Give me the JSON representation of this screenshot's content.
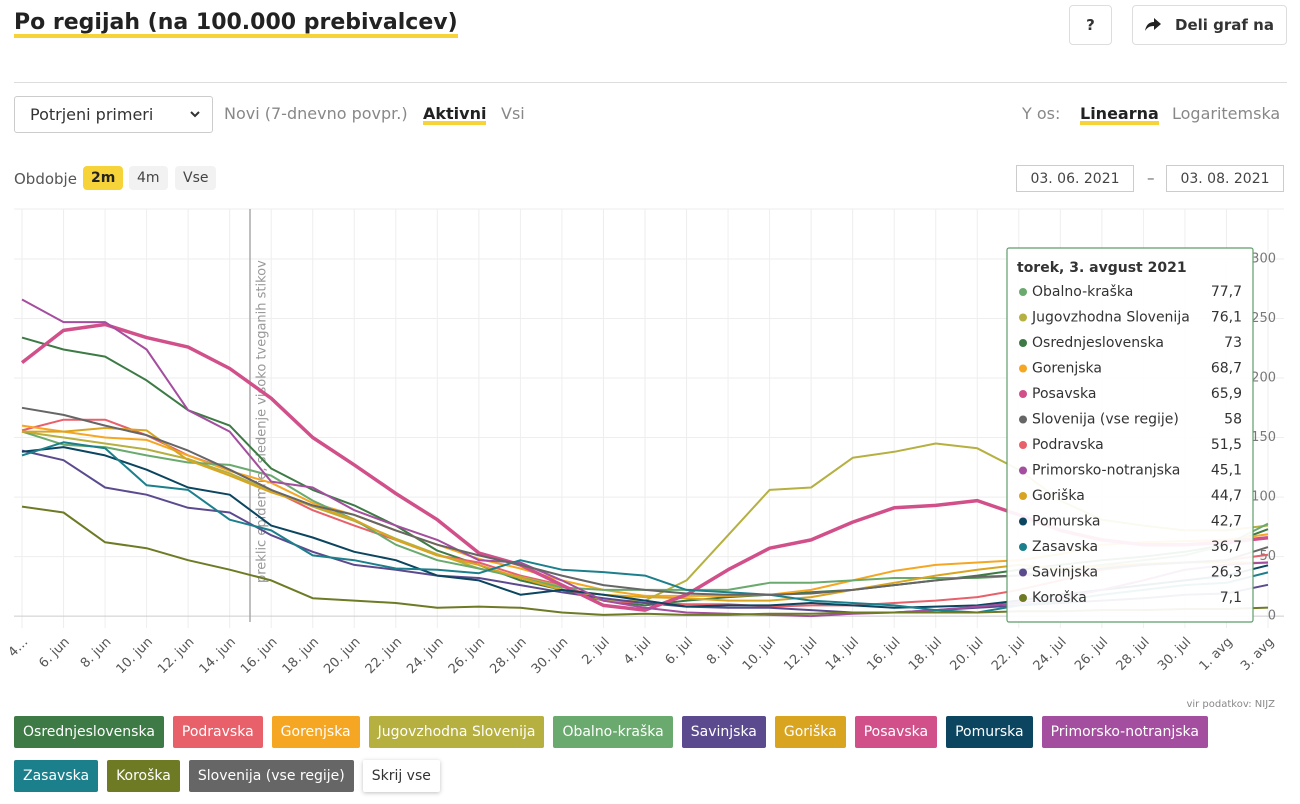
{
  "header": {
    "title": "Po regijah (na 100.000 prebivalcev)",
    "help_button": "?",
    "share_button": "Deli graf na"
  },
  "controls": {
    "measure_select": "Potrjeni primeri",
    "tabs": [
      "Novi (7-dnevno povpr.)",
      "Aktivni",
      "Vsi"
    ],
    "y_axis_label": "Y os:",
    "y_scale_options": [
      "Linearna",
      "Logaritemska"
    ],
    "period_label": "Obdobje",
    "period_options": [
      "2m",
      "4m",
      "Vse"
    ],
    "date_from": "03. 06. 2021",
    "date_separator": "–",
    "date_to": "03. 08. 2021"
  },
  "chart_data": {
    "type": "line",
    "categories": [
      "4…",
      "6. jun",
      "8. jun",
      "10. jun",
      "12. jun",
      "14. jun",
      "16. jun",
      "18. jun",
      "20. jun",
      "22. jun",
      "24. jun",
      "26. jun",
      "28. jun",
      "30. jun",
      "2. jul",
      "4. jul",
      "6. jul",
      "8. jul",
      "10. jul",
      "12. jul",
      "14. jul",
      "16. jul",
      "18. jul",
      "20. jul",
      "22. jul",
      "24. jul",
      "26. jul",
      "28. jul",
      "30. jul",
      "1. avg",
      "3. avg"
    ],
    "series": [
      {
        "name": "Osrednjeslovenska",
        "color": "#3d7a45",
        "values": [
          234,
          224,
          218,
          198,
          173,
          160,
          124,
          106,
          93,
          76,
          55,
          43,
          30,
          22,
          13,
          9,
          13,
          16,
          18,
          20,
          22,
          26,
          30,
          34,
          39,
          43,
          47,
          50,
          54,
          60,
          73
        ]
      },
      {
        "name": "Podravska",
        "color": "#e8606a",
        "values": [
          156,
          165,
          165,
          152,
          135,
          123,
          106,
          89,
          76,
          64,
          51,
          45,
          34,
          26,
          13,
          11,
          10,
          10,
          8,
          9,
          9,
          11,
          13,
          16,
          22,
          30,
          39,
          43,
          45,
          47,
          51.5
        ]
      },
      {
        "name": "Gorenjska",
        "color": "#f5a623",
        "values": [
          160,
          155,
          150,
          148,
          135,
          122,
          112,
          95,
          85,
          72,
          60,
          48,
          40,
          30,
          22,
          17,
          17,
          17,
          18,
          22,
          30,
          38,
          43,
          45,
          47,
          52,
          60,
          62,
          63,
          64,
          68.7
        ]
      },
      {
        "name": "Jugovzhodna Slovenija",
        "color": "#b5b040",
        "values": [
          155,
          150,
          145,
          140,
          132,
          120,
          105,
          92,
          80,
          65,
          52,
          40,
          33,
          25,
          13,
          13,
          30,
          68,
          106,
          108,
          133,
          138,
          145,
          141,
          123,
          97,
          81,
          76,
          72,
          72,
          76.1
        ]
      },
      {
        "name": "Obalno-kraška",
        "color": "#6aaa6e",
        "values": [
          155,
          144,
          142,
          135,
          129,
          127,
          118,
          97,
          81,
          60,
          47,
          40,
          32,
          24,
          22,
          22,
          22,
          22,
          28,
          28,
          30,
          32,
          32,
          32,
          34,
          39,
          43,
          47,
          51,
          60,
          77.7
        ]
      },
      {
        "name": "Savinjska",
        "color": "#5c4a8f",
        "values": [
          139,
          131,
          108,
          102,
          91,
          87,
          68,
          54,
          43,
          39,
          34,
          32,
          26,
          20,
          15,
          11,
          8,
          7,
          7,
          5,
          3,
          3,
          5,
          7,
          9,
          11,
          13,
          15,
          18,
          19,
          26.3
        ]
      },
      {
        "name": "Goriška",
        "color": "#d9a520",
        "values": [
          155,
          155,
          158,
          156,
          131,
          118,
          104,
          93,
          81,
          64,
          51,
          43,
          32,
          22,
          18,
          16,
          15,
          13,
          13,
          16,
          22,
          28,
          34,
          39,
          43,
          40,
          42,
          44,
          45,
          45,
          44.7
        ]
      },
      {
        "name": "Posavska",
        "color": "#d1508a",
        "values": [
          213,
          240,
          245,
          234,
          226,
          208,
          183,
          150,
          127,
          103,
          81,
          53,
          43,
          26,
          9,
          5,
          18,
          39,
          57,
          64,
          79,
          91,
          93,
          97,
          85,
          72,
          64,
          60,
          60,
          62,
          65.9
        ]
      },
      {
        "name": "Pomurska",
        "color": "#0b4560",
        "values": [
          138,
          142,
          135,
          123,
          108,
          102,
          76,
          66,
          54,
          47,
          34,
          30,
          18,
          22,
          18,
          13,
          8,
          9,
          9,
          11,
          9,
          7,
          8,
          9,
          13,
          18,
          22,
          26,
          30,
          34,
          42.7
        ]
      },
      {
        "name": "Primorsko-notranjska",
        "color": "#a34e9e",
        "values": [
          266,
          247,
          247,
          224,
          173,
          155,
          113,
          108,
          89,
          76,
          64,
          47,
          45,
          30,
          13,
          7,
          3,
          2,
          1,
          0,
          2,
          3,
          5,
          8,
          11,
          15,
          22,
          30,
          39,
          43,
          45.1
        ]
      },
      {
        "name": "Zasavska",
        "color": "#1b7f8c",
        "values": [
          135,
          146,
          141,
          110,
          106,
          81,
          72,
          51,
          47,
          40,
          39,
          36,
          47,
          39,
          37,
          34,
          22,
          20,
          18,
          13,
          11,
          9,
          5,
          3,
          9,
          13,
          18,
          22,
          26,
          28,
          36.7
        ]
      },
      {
        "name": "Koroška",
        "color": "#6f7a25",
        "values": [
          92,
          87,
          62,
          57,
          47,
          39,
          30,
          15,
          13,
          11,
          7,
          8,
          7,
          3,
          1,
          2,
          1,
          1,
          2,
          2,
          3,
          3,
          3,
          3,
          4,
          4,
          5,
          5,
          6,
          6,
          7.1
        ]
      },
      {
        "name": "Slovenija (vse regije)",
        "color": "#666666",
        "values": [
          175,
          169,
          160,
          152,
          139,
          123,
          106,
          93,
          85,
          72,
          60,
          51,
          43,
          34,
          26,
          22,
          19,
          18,
          18,
          19,
          22,
          26,
          30,
          33,
          34,
          37,
          40,
          43,
          45,
          47,
          58
        ]
      }
    ],
    "ylim": [
      -10,
      342
    ],
    "yticks": [
      0,
      50,
      100,
      150,
      200,
      250,
      300
    ],
    "grid": true,
    "annotation": "preklic epidemije, sledenje visoko tveganih stikov",
    "source": "vir podatkov: NIJZ"
  },
  "tooltip": {
    "title": "torek, 3. avgust 2021",
    "items": [
      {
        "name": "Obalno-kraška",
        "color": "#6aaa6e",
        "label": "77,7"
      },
      {
        "name": "Jugovzhodna Slovenija",
        "color": "#b5b040",
        "label": "76,1"
      },
      {
        "name": "Osrednjeslovenska",
        "color": "#3d7a45",
        "label": "73"
      },
      {
        "name": "Gorenjska",
        "color": "#f5a623",
        "label": "68,7"
      },
      {
        "name": "Posavska",
        "color": "#d1508a",
        "label": "65,9"
      },
      {
        "name": "Slovenija (vse regije)",
        "color": "#666666",
        "label": "58"
      },
      {
        "name": "Podravska",
        "color": "#e8606a",
        "label": "51,5"
      },
      {
        "name": "Primorsko-notranjska",
        "color": "#a34e9e",
        "label": "45,1"
      },
      {
        "name": "Goriška",
        "color": "#d9a520",
        "label": "44,7"
      },
      {
        "name": "Pomurska",
        "color": "#0b4560",
        "label": "42,7"
      },
      {
        "name": "Zasavska",
        "color": "#1b7f8c",
        "label": "36,7"
      },
      {
        "name": "Savinjska",
        "color": "#5c4a8f",
        "label": "26,3"
      },
      {
        "name": "Koroška",
        "color": "#6f7a25",
        "label": "7,1"
      }
    ]
  },
  "legend_actions": {
    "hide_all": "Skrij vse"
  }
}
